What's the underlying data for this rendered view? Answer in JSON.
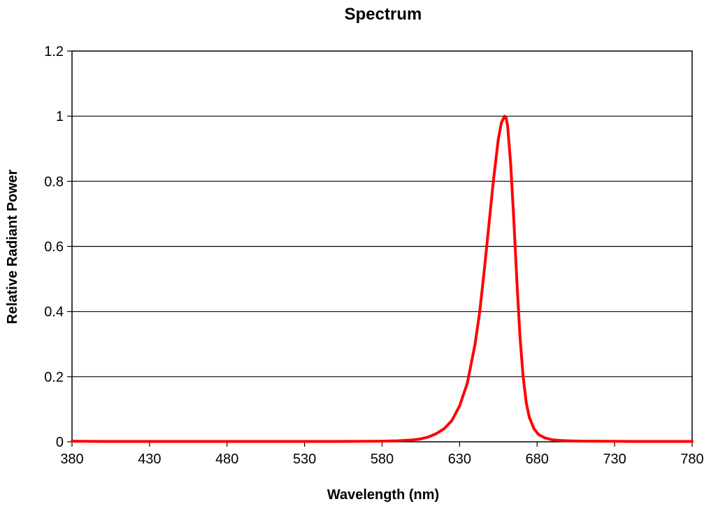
{
  "chart_data": {
    "type": "line",
    "title": "Spectrum",
    "xlabel": "Wavelength (nm)",
    "ylabel": "Relative Radiant Power",
    "xlim": [
      380,
      780
    ],
    "ylim": [
      0,
      1.2
    ],
    "x_ticks": [
      380,
      430,
      480,
      530,
      580,
      630,
      680,
      730,
      780
    ],
    "x_tick_labels": [
      "380",
      "430",
      "480",
      "530",
      "580",
      "630",
      "680",
      "730",
      "780"
    ],
    "y_ticks": [
      0,
      0.2,
      0.4,
      0.6,
      0.8,
      1,
      1.2
    ],
    "y_tick_labels": [
      "0",
      "0.2",
      "0.4",
      "0.6",
      "0.8",
      "1",
      "1.2"
    ],
    "grid": "horizontal",
    "legend": "none",
    "series": [
      {
        "color": "#ff0000",
        "x": [
          380,
          400,
          450,
          500,
          550,
          580,
          590,
          600,
          605,
          610,
          615,
          620,
          625,
          630,
          635,
          640,
          643,
          646,
          649,
          652,
          655,
          657,
          659,
          660,
          661,
          663,
          665,
          667,
          669,
          671,
          673,
          675,
          678,
          681,
          685,
          690,
          695,
          700,
          710,
          720,
          740,
          760,
          780
        ],
        "y": [
          0.002,
          0.001,
          0.001,
          0.001,
          0.001,
          0.002,
          0.003,
          0.006,
          0.009,
          0.015,
          0.025,
          0.04,
          0.065,
          0.11,
          0.18,
          0.3,
          0.4,
          0.53,
          0.67,
          0.81,
          0.93,
          0.98,
          1.0,
          0.995,
          0.97,
          0.85,
          0.68,
          0.49,
          0.32,
          0.2,
          0.12,
          0.075,
          0.04,
          0.022,
          0.012,
          0.006,
          0.004,
          0.003,
          0.002,
          0.002,
          0.001,
          0.001,
          0.001
        ]
      }
    ]
  }
}
